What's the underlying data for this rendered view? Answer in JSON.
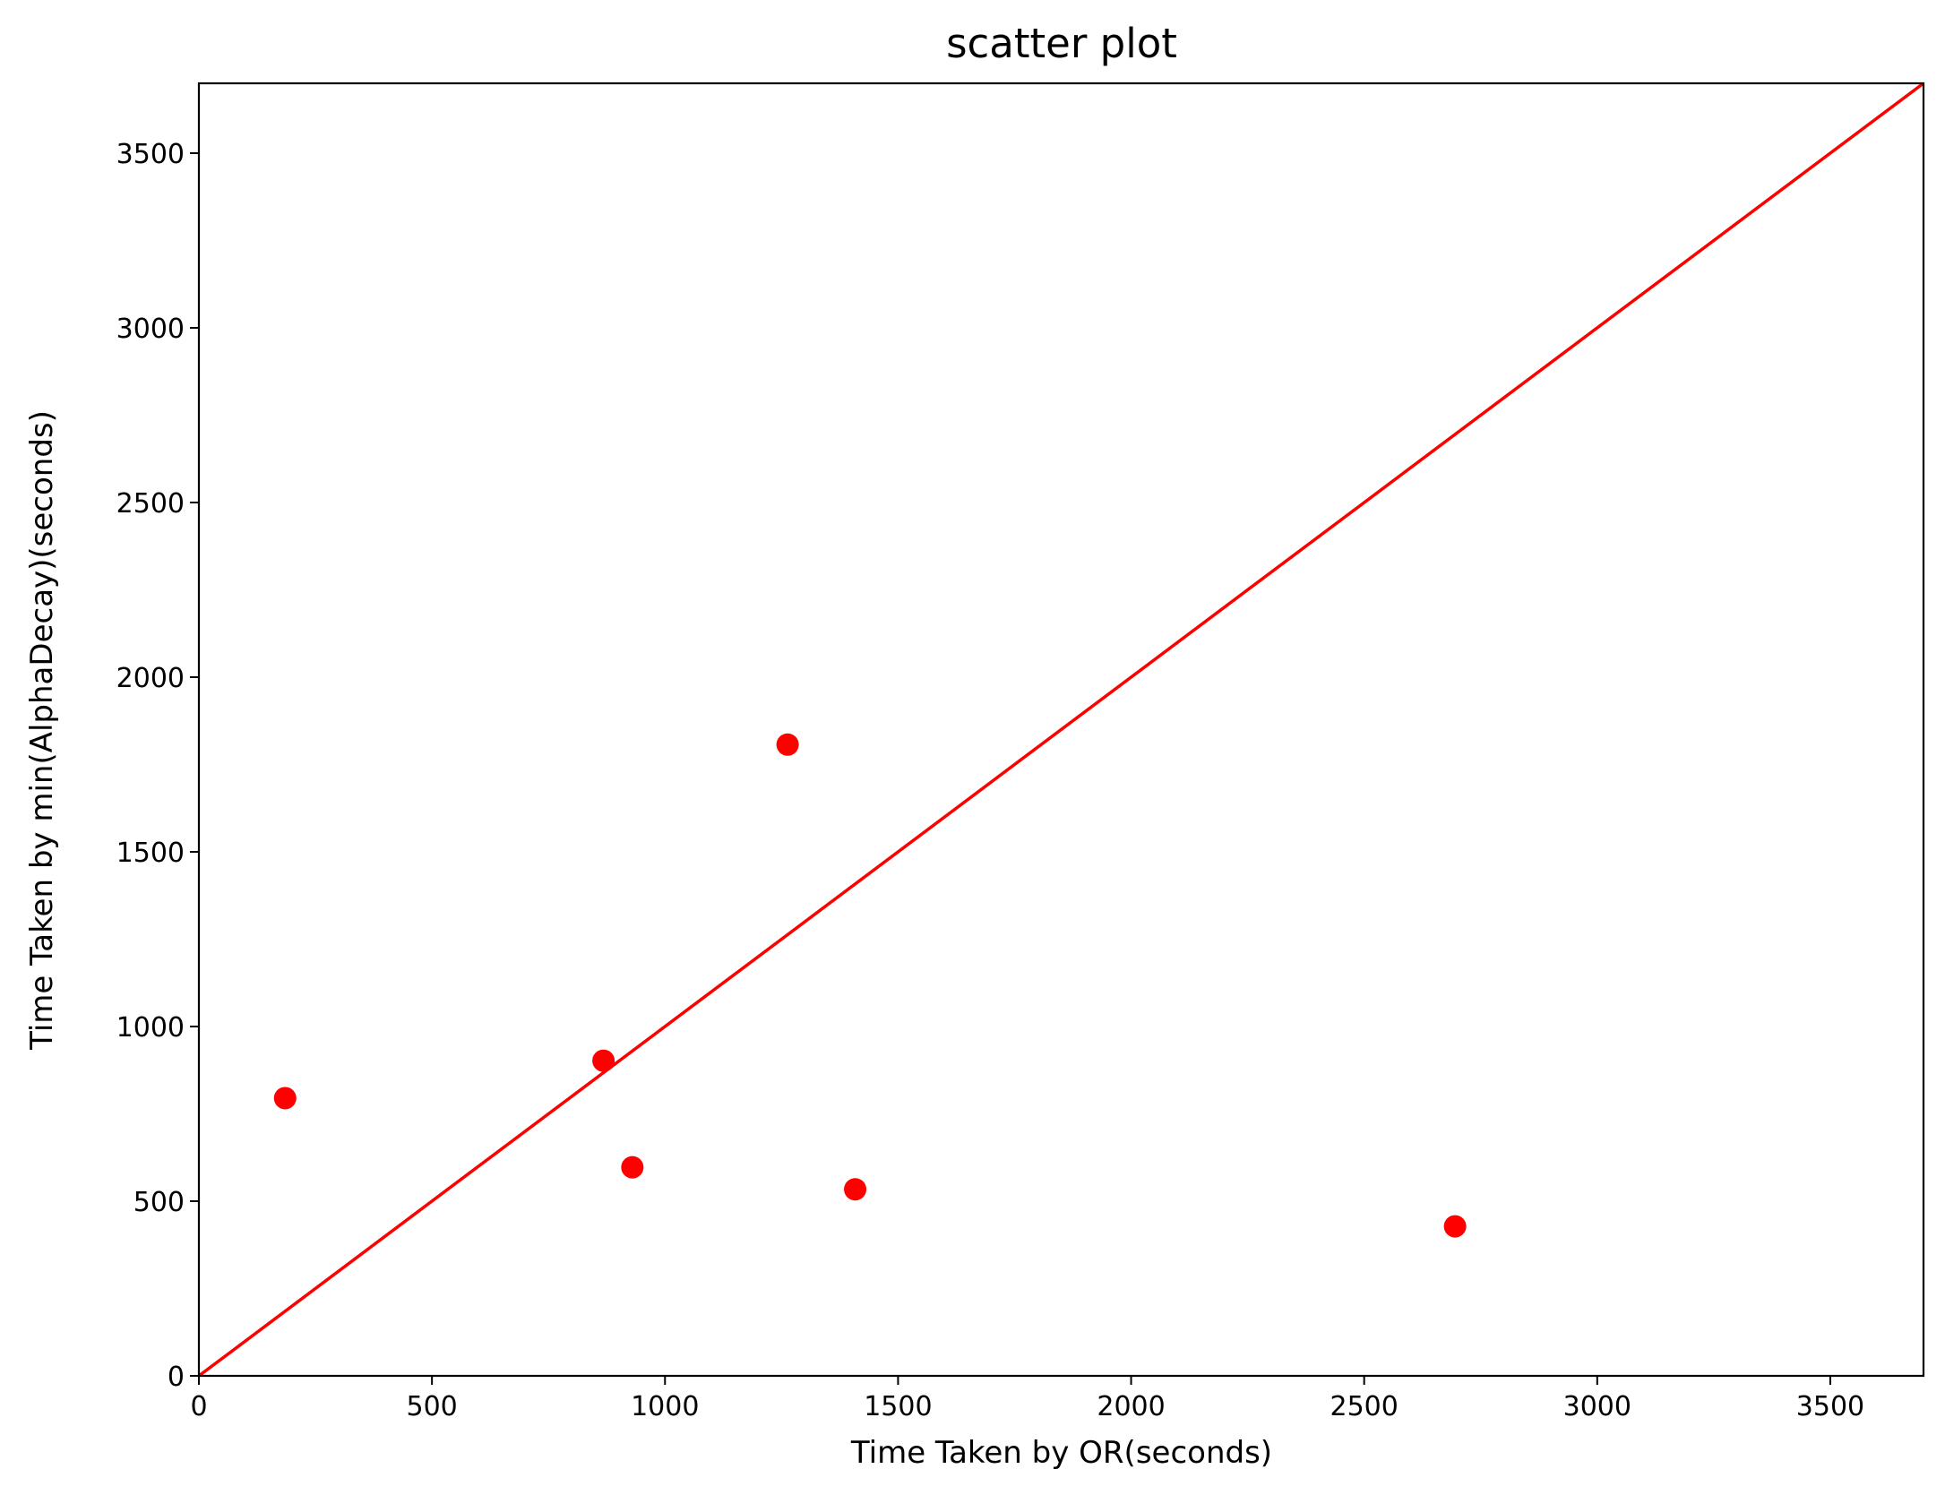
{
  "chart_data": {
    "type": "scatter",
    "title": "scatter plot",
    "xlabel": "Time Taken by OR(seconds)",
    "ylabel": "Time Taken by min(AlphaDecay)(seconds)",
    "xlim": [
      0,
      3700
    ],
    "ylim": [
      0,
      3700
    ],
    "xticks": [
      0,
      500,
      1000,
      1500,
      2000,
      2500,
      3000,
      3500
    ],
    "yticks": [
      0,
      500,
      1000,
      1500,
      2000,
      2500,
      3000,
      3500
    ],
    "grid": false,
    "legend": "none",
    "marker_color": "#ff0000",
    "line_color": "#ff0000",
    "reference_line": {
      "x": [
        0,
        3700
      ],
      "y": [
        0,
        3700
      ]
    },
    "points": [
      {
        "x": 185,
        "y": 795
      },
      {
        "x": 868,
        "y": 902
      },
      {
        "x": 930,
        "y": 597
      },
      {
        "x": 1263,
        "y": 1807
      },
      {
        "x": 1408,
        "y": 534
      },
      {
        "x": 2695,
        "y": 428
      }
    ]
  }
}
